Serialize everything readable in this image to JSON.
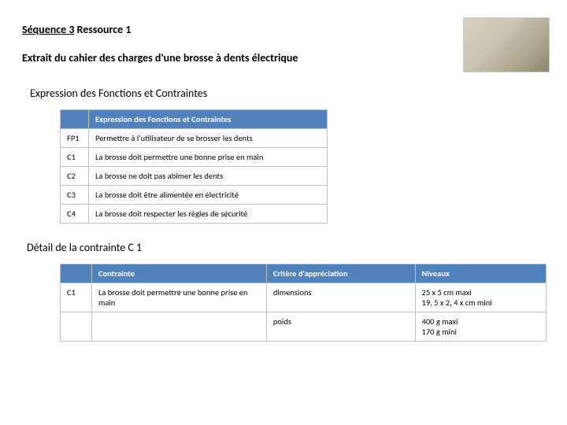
{
  "header": {
    "seq_label": "Séquence 3",
    "res_label": " Ressource 1",
    "title": "Extrait du cahier des charges d'une brosse à dents électrique"
  },
  "section1": {
    "heading": "Expression des Fonctions et Contraintes",
    "table_header": "Expression des Fonctions et Contraintes",
    "rows": [
      {
        "code": "FP1",
        "text": "Permettre à l'utilisateur de se brosser les dents"
      },
      {
        "code": "C1",
        "text": "La brosse doit permettre une bonne prise en main"
      },
      {
        "code": "C2",
        "text": "La brosse ne doit pas abîmer les dents"
      },
      {
        "code": "C3",
        "text": "La brosse doit être alimentée en électricité"
      },
      {
        "code": "C4",
        "text": "La brosse doit respecter les règles de sécurité"
      }
    ]
  },
  "section2": {
    "heading": "Détail de la contrainte C 1",
    "headers": {
      "a": "Contrainte",
      "b": "Critère d'appréciation",
      "c": "Niveaux"
    },
    "rows": [
      {
        "code": "C1",
        "a": "La brosse doit permettre une bonne prise en main",
        "b": "dimensions",
        "c": "25 x 5 cm maxi\n19, 5 x 2, 4 x cm mini"
      },
      {
        "code": "",
        "a": "",
        "b": "poids",
        "c": "400 g maxi\n170 g mini"
      }
    ]
  },
  "colors": {
    "header_bg": "#4f81bd",
    "border": "#bfbfbf"
  }
}
